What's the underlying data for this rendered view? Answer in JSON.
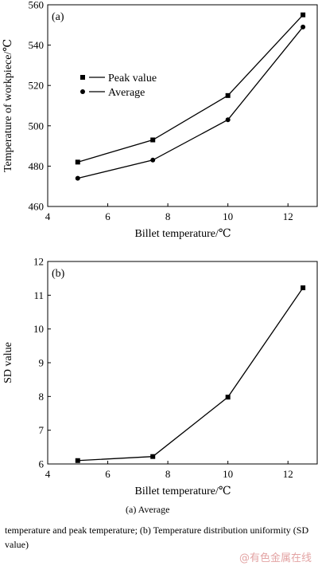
{
  "chart_data": [
    {
      "type": "line",
      "panel_label": "(a)",
      "xlabel": "Billet temperature/℃",
      "ylabel": "Temperature of workpiece/℃",
      "xlim": [
        4,
        13
      ],
      "ylim": [
        460,
        560
      ],
      "xticks": [
        4,
        6,
        8,
        10,
        12
      ],
      "yticks": [
        460,
        480,
        500,
        520,
        540,
        560
      ],
      "legend_position": "upper-left",
      "x": [
        5,
        7.5,
        10,
        12.5
      ],
      "series": [
        {
          "name": "Peak value",
          "marker": "square",
          "values": [
            482,
            493,
            515,
            555
          ]
        },
        {
          "name": "Average",
          "marker": "circle",
          "values": [
            474,
            483,
            503,
            549
          ]
        }
      ]
    },
    {
      "type": "line",
      "panel_label": "(b)",
      "xlabel": "Billet temperature/℃",
      "ylabel": "SD value",
      "xlim": [
        4,
        13
      ],
      "ylim": [
        6,
        12
      ],
      "xticks": [
        4,
        6,
        8,
        10,
        12
      ],
      "yticks": [
        6,
        7,
        8,
        9,
        10,
        11,
        12
      ],
      "x": [
        5,
        7.5,
        10,
        12.5
      ],
      "series": [
        {
          "marker": "square",
          "values": [
            6.1,
            6.22,
            7.98,
            11.22
          ]
        }
      ]
    }
  ],
  "caption": {
    "line_a": "(a)    Average",
    "rest": "temperature and peak temperature; (b) Temperature distribution uniformity (SD value)"
  },
  "watermark": "@有色金属在线"
}
